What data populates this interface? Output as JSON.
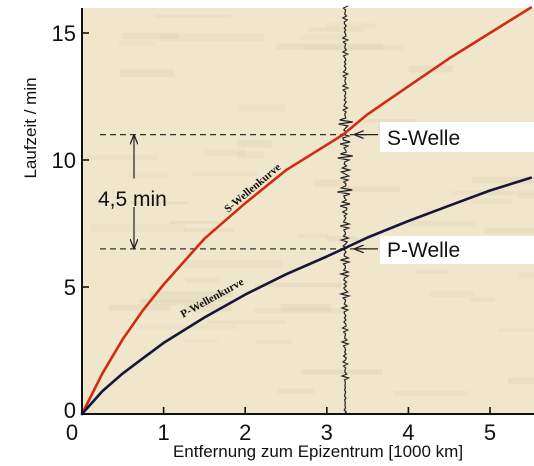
{
  "chart_data": {
    "type": "line",
    "title": "",
    "xlabel": "Entfernung zum Epizentrum [1000 km]",
    "ylabel": "Laufzeit / min",
    "xlim": [
      0,
      5.5
    ],
    "ylim": [
      0,
      16
    ],
    "x_ticks": [
      "0",
      "1",
      "2",
      "3",
      "4",
      "5"
    ],
    "y_ticks": [
      "0",
      "5",
      "10",
      "15"
    ],
    "grid": false,
    "series": [
      {
        "name": "S-Wellenkurve",
        "color": "#d42a14",
        "points": [
          [
            0,
            0
          ],
          [
            0.25,
            1.6
          ],
          [
            0.5,
            2.95
          ],
          [
            0.75,
            4.1
          ],
          [
            1,
            5.1
          ],
          [
            1.5,
            6.9
          ],
          [
            2,
            8.3
          ],
          [
            2.5,
            9.6
          ],
          [
            3,
            10.6
          ],
          [
            3.2,
            11.0
          ],
          [
            3.5,
            11.8
          ],
          [
            4,
            12.9
          ],
          [
            4.5,
            14.0
          ],
          [
            5,
            15.0
          ],
          [
            5.5,
            16.0
          ]
        ]
      },
      {
        "name": "P-Wellenkurve",
        "color": "#16163a",
        "points": [
          [
            0,
            0
          ],
          [
            0.25,
            0.9
          ],
          [
            0.5,
            1.6
          ],
          [
            0.75,
            2.2
          ],
          [
            1,
            2.8
          ],
          [
            1.5,
            3.8
          ],
          [
            2,
            4.7
          ],
          [
            2.5,
            5.5
          ],
          [
            3,
            6.2
          ],
          [
            3.2,
            6.5
          ],
          [
            3.5,
            6.95
          ],
          [
            4,
            7.6
          ],
          [
            4.5,
            8.2
          ],
          [
            5,
            8.8
          ],
          [
            5.5,
            9.3
          ]
        ]
      }
    ],
    "annotations": {
      "s_wave_label": "S-Welle",
      "p_wave_label": "P-Welle",
      "difference_label": "4,5 min",
      "s_arrival": 11.0,
      "p_arrival": 6.5,
      "station_distance": 3.2
    }
  },
  "colors": {
    "background": "#efe6cc",
    "s_curve": "#d42a14",
    "p_curve": "#16163a",
    "guide_lines": "#333333"
  }
}
